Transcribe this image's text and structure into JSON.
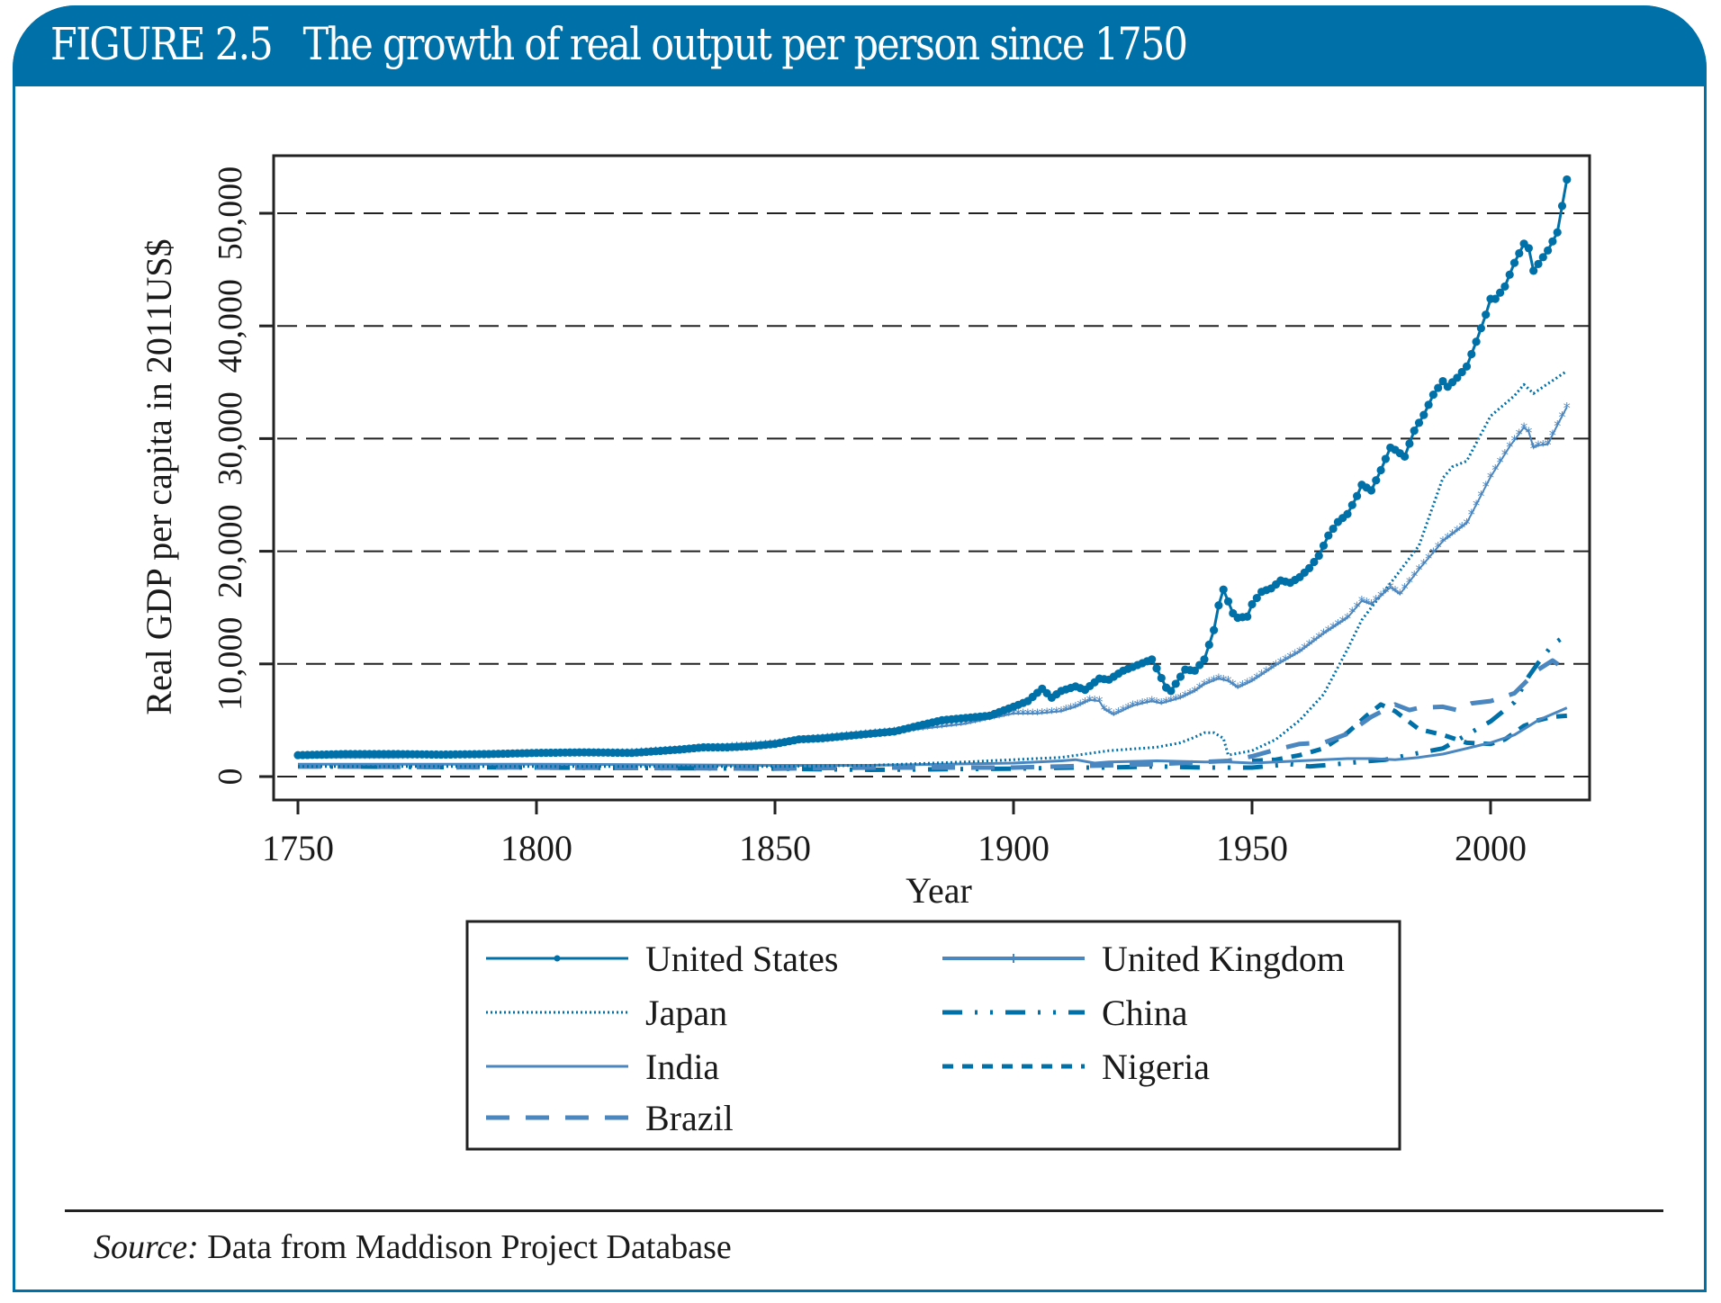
{
  "figure": {
    "number": "FIGURE 2.5",
    "title": "The growth of real output per person since 1750",
    "source_label": "Source:",
    "source_text": "Data from Maddison Project Database"
  },
  "colors": {
    "brand": "#0070a8",
    "series_dark": "#0070a8",
    "series_light": "#4a86c0",
    "grid": "#222222"
  },
  "chart_data": {
    "type": "line",
    "title": "The growth of real output per person since 1750",
    "xlabel": "Year",
    "ylabel": "Real GDP per capita in 2011US$",
    "xlim": [
      1745,
      2021
    ],
    "ylim": [
      -2000,
      55000
    ],
    "xticks": [
      1750,
      1800,
      1850,
      1900,
      1950,
      2000
    ],
    "xtick_labels": [
      "1750",
      "1800",
      "1850",
      "1900",
      "1950",
      "2000"
    ],
    "yticks": [
      0,
      10000,
      20000,
      30000,
      40000,
      50000
    ],
    "ytick_labels": [
      "0",
      "10,000",
      "20,000",
      "30,000",
      "40,000",
      "50,000"
    ],
    "grid": "horizontal-dashed",
    "legend_position": "bottom",
    "series": [
      {
        "name": "United States",
        "style": "solid-dots",
        "points": [
          [
            1750,
            1900
          ],
          [
            1760,
            2000
          ],
          [
            1770,
            2000
          ],
          [
            1780,
            1950
          ],
          [
            1790,
            2000
          ],
          [
            1800,
            2100
          ],
          [
            1810,
            2150
          ],
          [
            1820,
            2100
          ],
          [
            1830,
            2400
          ],
          [
            1835,
            2600
          ],
          [
            1840,
            2600
          ],
          [
            1845,
            2700
          ],
          [
            1850,
            2900
          ],
          [
            1855,
            3300
          ],
          [
            1860,
            3400
          ],
          [
            1865,
            3600
          ],
          [
            1870,
            3800
          ],
          [
            1875,
            4000
          ],
          [
            1880,
            4500
          ],
          [
            1885,
            5000
          ],
          [
            1890,
            5200
          ],
          [
            1895,
            5400
          ],
          [
            1900,
            6200
          ],
          [
            1903,
            6700
          ],
          [
            1906,
            7800
          ],
          [
            1908,
            7000
          ],
          [
            1910,
            7600
          ],
          [
            1913,
            8000
          ],
          [
            1915,
            7700
          ],
          [
            1918,
            8700
          ],
          [
            1920,
            8600
          ],
          [
            1923,
            9400
          ],
          [
            1926,
            9900
          ],
          [
            1929,
            10400
          ],
          [
            1930,
            9600
          ],
          [
            1932,
            7900
          ],
          [
            1933,
            7600
          ],
          [
            1936,
            9500
          ],
          [
            1938,
            9400
          ],
          [
            1940,
            10400
          ],
          [
            1942,
            13000
          ],
          [
            1943,
            15200
          ],
          [
            1944,
            16600
          ],
          [
            1946,
            14500
          ],
          [
            1947,
            14100
          ],
          [
            1949,
            14200
          ],
          [
            1950,
            15300
          ],
          [
            1952,
            16400
          ],
          [
            1954,
            16700
          ],
          [
            1956,
            17400
          ],
          [
            1958,
            17200
          ],
          [
            1960,
            17700
          ],
          [
            1962,
            18500
          ],
          [
            1964,
            19600
          ],
          [
            1966,
            21400
          ],
          [
            1968,
            22600
          ],
          [
            1970,
            23300
          ],
          [
            1972,
            24900
          ],
          [
            1973,
            25900
          ],
          [
            1975,
            25400
          ],
          [
            1977,
            27200
          ],
          [
            1979,
            29200
          ],
          [
            1980,
            29000
          ],
          [
            1982,
            28400
          ],
          [
            1984,
            30700
          ],
          [
            1986,
            32100
          ],
          [
            1988,
            33900
          ],
          [
            1990,
            35100
          ],
          [
            1991,
            34600
          ],
          [
            1993,
            35400
          ],
          [
            1995,
            36400
          ],
          [
            1997,
            38600
          ],
          [
            1999,
            41000
          ],
          [
            2000,
            42400
          ],
          [
            2001,
            42400
          ],
          [
            2003,
            43500
          ],
          [
            2005,
            45600
          ],
          [
            2007,
            47300
          ],
          [
            2008,
            46900
          ],
          [
            2009,
            44900
          ],
          [
            2010,
            45500
          ],
          [
            2012,
            46700
          ],
          [
            2014,
            48300
          ],
          [
            2016,
            53000
          ]
        ]
      },
      {
        "name": "United Kingdom",
        "style": "solid-stars",
        "points": [
          [
            1750,
            1700
          ],
          [
            1770,
            1700
          ],
          [
            1800,
            2000
          ],
          [
            1820,
            2100
          ],
          [
            1840,
            2600
          ],
          [
            1850,
            2900
          ],
          [
            1860,
            3400
          ],
          [
            1870,
            3800
          ],
          [
            1880,
            4200
          ],
          [
            1890,
            4700
          ],
          [
            1900,
            5600
          ],
          [
            1905,
            5600
          ],
          [
            1910,
            5800
          ],
          [
            1913,
            6200
          ],
          [
            1916,
            6800
          ],
          [
            1918,
            6700
          ],
          [
            1919,
            6000
          ],
          [
            1921,
            5500
          ],
          [
            1925,
            6300
          ],
          [
            1929,
            6700
          ],
          [
            1931,
            6500
          ],
          [
            1935,
            7000
          ],
          [
            1938,
            7600
          ],
          [
            1940,
            8200
          ],
          [
            1943,
            8700
          ],
          [
            1945,
            8500
          ],
          [
            1947,
            7900
          ],
          [
            1950,
            8500
          ],
          [
            1955,
            9900
          ],
          [
            1960,
            11100
          ],
          [
            1965,
            12700
          ],
          [
            1970,
            14100
          ],
          [
            1973,
            15600
          ],
          [
            1975,
            15300
          ],
          [
            1979,
            16800
          ],
          [
            1981,
            16200
          ],
          [
            1985,
            18400
          ],
          [
            1990,
            20900
          ],
          [
            1995,
            22500
          ],
          [
            2000,
            26600
          ],
          [
            2004,
            29300
          ],
          [
            2007,
            31000
          ],
          [
            2008,
            30600
          ],
          [
            2009,
            29200
          ],
          [
            2010,
            29400
          ],
          [
            2012,
            29500
          ],
          [
            2014,
            31200
          ],
          [
            2016,
            32800
          ]
        ]
      },
      {
        "name": "Japan",
        "style": "dotted",
        "points": [
          [
            1750,
            900
          ],
          [
            1800,
            900
          ],
          [
            1850,
            900
          ],
          [
            1870,
            1000
          ],
          [
            1890,
            1300
          ],
          [
            1900,
            1500
          ],
          [
            1910,
            1700
          ],
          [
            1920,
            2300
          ],
          [
            1930,
            2600
          ],
          [
            1935,
            3000
          ],
          [
            1938,
            3500
          ],
          [
            1940,
            3900
          ],
          [
            1942,
            3900
          ],
          [
            1944,
            3400
          ],
          [
            1945,
            1900
          ],
          [
            1950,
            2300
          ],
          [
            1955,
            3300
          ],
          [
            1960,
            5000
          ],
          [
            1965,
            7300
          ],
          [
            1970,
            11300
          ],
          [
            1973,
            13900
          ],
          [
            1975,
            15000
          ],
          [
            1980,
            17700
          ],
          [
            1985,
            20500
          ],
          [
            1990,
            26500
          ],
          [
            1992,
            27500
          ],
          [
            1995,
            28000
          ],
          [
            2000,
            32000
          ],
          [
            2005,
            33800
          ],
          [
            2007,
            34800
          ],
          [
            2009,
            34000
          ],
          [
            2010,
            34300
          ],
          [
            2016,
            36000
          ]
        ]
      },
      {
        "name": "India",
        "style": "solid-thin",
        "points": [
          [
            1750,
            1100
          ],
          [
            1800,
            1100
          ],
          [
            1850,
            1000
          ],
          [
            1870,
            1000
          ],
          [
            1900,
            1200
          ],
          [
            1910,
            1400
          ],
          [
            1913,
            1500
          ],
          [
            1917,
            1200
          ],
          [
            1920,
            1300
          ],
          [
            1930,
            1400
          ],
          [
            1940,
            1300
          ],
          [
            1945,
            1300
          ],
          [
            1950,
            1200
          ],
          [
            1955,
            1300
          ],
          [
            1960,
            1400
          ],
          [
            1965,
            1500
          ],
          [
            1970,
            1600
          ],
          [
            1975,
            1600
          ],
          [
            1980,
            1500
          ],
          [
            1985,
            1700
          ],
          [
            1990,
            2000
          ],
          [
            1995,
            2500
          ],
          [
            2000,
            3000
          ],
          [
            2005,
            3700
          ],
          [
            2010,
            5000
          ],
          [
            2016,
            6100
          ]
        ]
      },
      {
        "name": "Brazil",
        "style": "dashed",
        "points": [
          [
            1750,
            900
          ],
          [
            1800,
            800
          ],
          [
            1850,
            700
          ],
          [
            1870,
            800
          ],
          [
            1900,
            800
          ],
          [
            1910,
            900
          ],
          [
            1920,
            1000
          ],
          [
            1930,
            1100
          ],
          [
            1940,
            1300
          ],
          [
            1945,
            1400
          ],
          [
            1950,
            1800
          ],
          [
            1955,
            2400
          ],
          [
            1960,
            2900
          ],
          [
            1965,
            3000
          ],
          [
            1970,
            3800
          ],
          [
            1975,
            5300
          ],
          [
            1980,
            6400
          ],
          [
            1983,
            5900
          ],
          [
            1985,
            6100
          ],
          [
            1990,
            6200
          ],
          [
            1993,
            5900
          ],
          [
            1996,
            6500
          ],
          [
            2000,
            6700
          ],
          [
            2005,
            7400
          ],
          [
            2010,
            9500
          ],
          [
            2013,
            10300
          ],
          [
            2016,
            9400
          ]
        ]
      },
      {
        "name": "China",
        "style": "dash-dot-dot",
        "points": [
          [
            1750,
            900
          ],
          [
            1800,
            800
          ],
          [
            1850,
            700
          ],
          [
            1870,
            600
          ],
          [
            1900,
            700
          ],
          [
            1913,
            800
          ],
          [
            1920,
            800
          ],
          [
            1930,
            900
          ],
          [
            1940,
            800
          ],
          [
            1950,
            800
          ],
          [
            1958,
            1100
          ],
          [
            1962,
            900
          ],
          [
            1965,
            1000
          ],
          [
            1970,
            1200
          ],
          [
            1975,
            1400
          ],
          [
            1978,
            1500
          ],
          [
            1985,
            2100
          ],
          [
            1990,
            2500
          ],
          [
            1995,
            3700
          ],
          [
            2000,
            4900
          ],
          [
            2005,
            6600
          ],
          [
            2008,
            8900
          ],
          [
            2010,
            10100
          ],
          [
            2013,
            11700
          ],
          [
            2016,
            12600
          ]
        ]
      },
      {
        "name": "Nigeria",
        "style": "short-dash",
        "points": [
          [
            1950,
            1400
          ],
          [
            1955,
            1500
          ],
          [
            1960,
            1900
          ],
          [
            1965,
            2500
          ],
          [
            1970,
            3900
          ],
          [
            1974,
            5400
          ],
          [
            1977,
            6400
          ],
          [
            1980,
            5800
          ],
          [
            1985,
            4200
          ],
          [
            1990,
            3700
          ],
          [
            1995,
            3000
          ],
          [
            2000,
            2900
          ],
          [
            2003,
            3300
          ],
          [
            2007,
            4500
          ],
          [
            2010,
            5000
          ],
          [
            2013,
            5300
          ],
          [
            2016,
            5400
          ]
        ]
      }
    ]
  },
  "legend": {
    "items": [
      {
        "label": "United States",
        "style": "solid-dots"
      },
      {
        "label": "United Kingdom",
        "style": "solid-stars"
      },
      {
        "label": "Japan",
        "style": "dotted"
      },
      {
        "label": "China",
        "style": "dash-dot-dot"
      },
      {
        "label": "India",
        "style": "solid-thin"
      },
      {
        "label": "Nigeria",
        "style": "short-dash"
      },
      {
        "label": "Brazil",
        "style": "dashed"
      }
    ]
  }
}
